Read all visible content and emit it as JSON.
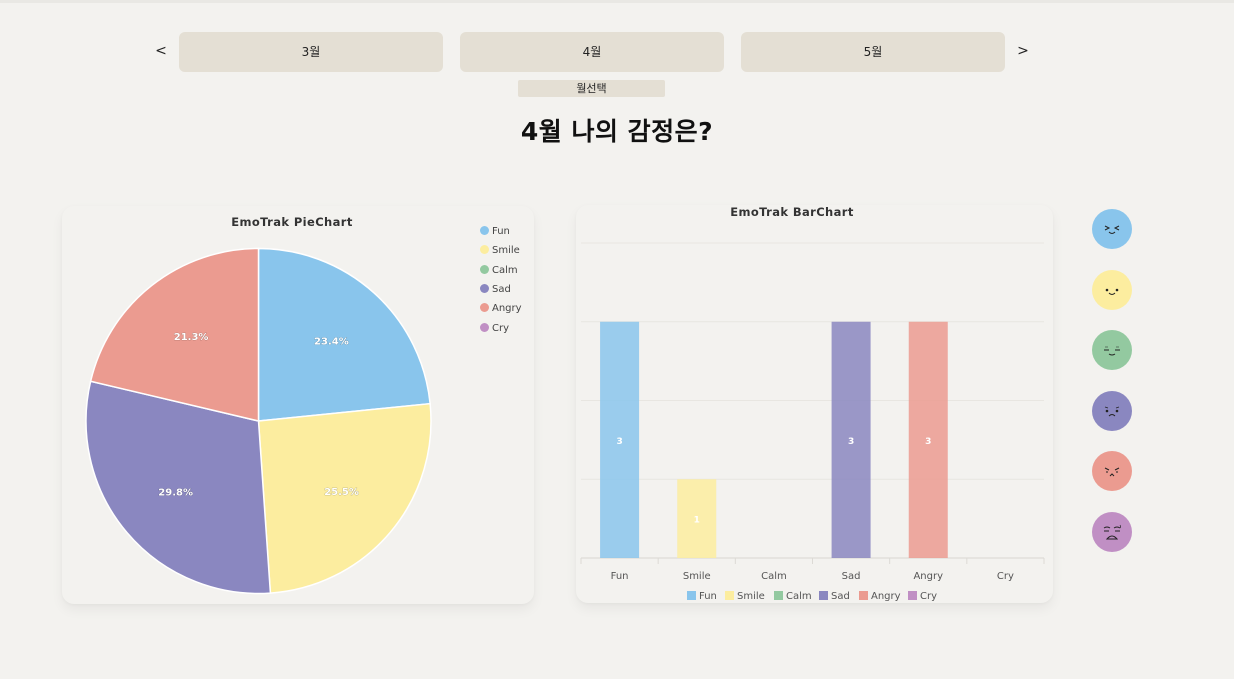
{
  "nav": {
    "prev": "<",
    "next": ">",
    "months": [
      "3월",
      "4월",
      "5월"
    ],
    "select_label": "월선택"
  },
  "heading": "4월 나의 감정은?",
  "colors": {
    "Fun": "#89c5ec",
    "Smile": "#fced9f",
    "Calm": "#93c9a0",
    "Sad": "#8a87c0",
    "Angry": "#eb9b90",
    "Cry": "#c08fc4"
  },
  "chart_data": [
    {
      "type": "pie",
      "title": "EmoTrak PieChart",
      "slices": [
        {
          "label": "Fun",
          "value": 23.4
        },
        {
          "label": "Smile",
          "value": 25.5
        },
        {
          "label": "Calm",
          "value": 0
        },
        {
          "label": "Sad",
          "value": 29.8
        },
        {
          "label": "Angry",
          "value": 21.3
        },
        {
          "label": "Cry",
          "value": 0
        }
      ],
      "value_labels": [
        "23.4%",
        "25.5%",
        "",
        "29.8%",
        "21.3%",
        ""
      ],
      "legend": [
        "Fun",
        "Smile",
        "Calm",
        "Sad",
        "Angry",
        "Cry"
      ],
      "legend_position": "top-right"
    },
    {
      "type": "bar",
      "title": "EmoTrak BarChart",
      "categories": [
        "Fun",
        "Smile",
        "Calm",
        "Sad",
        "Angry",
        "Cry"
      ],
      "values": [
        3,
        1,
        0,
        3,
        3,
        0
      ],
      "ylim": [
        0,
        4
      ],
      "grid": true,
      "legend": [
        "Fun",
        "Smile",
        "Calm",
        "Sad",
        "Angry",
        "Cry"
      ],
      "legend_position": "bottom"
    }
  ],
  "emotion_icons": [
    {
      "emotion": "Fun",
      "icon": "fun-face-icon"
    },
    {
      "emotion": "Smile",
      "icon": "smile-face-icon"
    },
    {
      "emotion": "Calm",
      "icon": "calm-face-icon"
    },
    {
      "emotion": "Sad",
      "icon": "sad-face-icon"
    },
    {
      "emotion": "Angry",
      "icon": "angry-face-icon"
    },
    {
      "emotion": "Cry",
      "icon": "cry-face-icon"
    }
  ]
}
